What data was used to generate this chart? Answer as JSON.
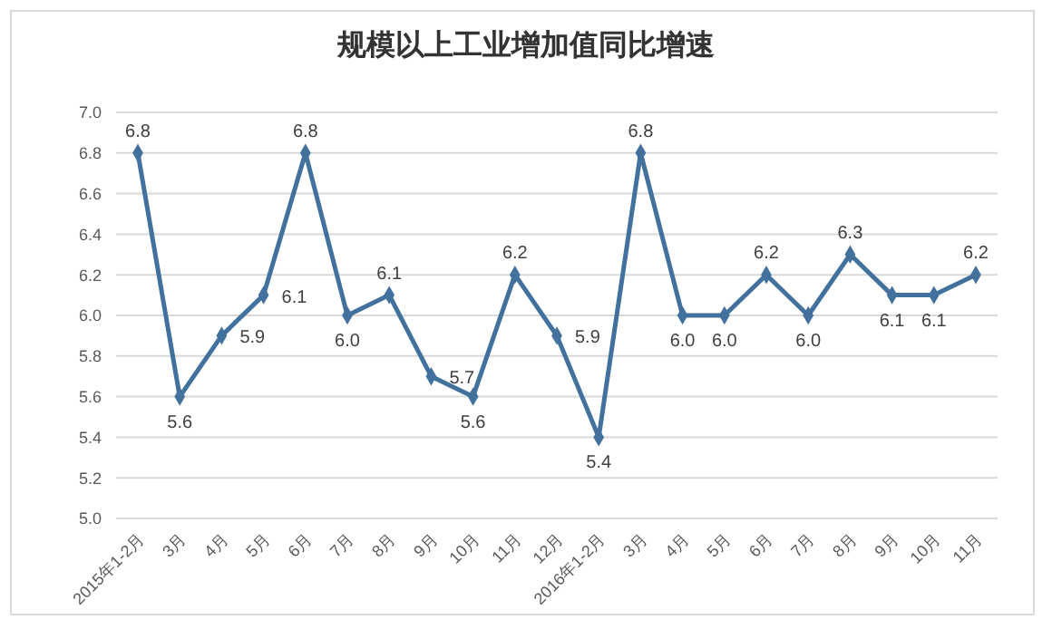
{
  "chart_data": {
    "type": "line",
    "title": "规模以上工业增加值同比增速",
    "categories": [
      "2015年1-2月",
      "3月",
      "4月",
      "5月",
      "6月",
      "7月",
      "8月",
      "9月",
      "10月",
      "11月",
      "12月",
      "2016年1-2月",
      "3月",
      "4月",
      "5月",
      "6月",
      "7月",
      "8月",
      "9月",
      "10月",
      "11月"
    ],
    "series": [
      {
        "color": "#41719c",
        "values": [
          6.8,
          5.6,
          5.9,
          6.1,
          6.8,
          6.0,
          6.1,
          5.7,
          5.6,
          6.2,
          5.9,
          5.4,
          6.8,
          6.0,
          6.0,
          6.2,
          6.0,
          6.3,
          6.1,
          6.1,
          6.2
        ],
        "value_labels": [
          "6.8",
          "5.6",
          "5.9",
          "6.1",
          "6.8",
          "6.0",
          "6.1",
          "5.7",
          "5.6",
          "6.2",
          "5.9",
          "5.4",
          "6.8",
          "6.0",
          "6.0",
          "6.2",
          "6.0",
          "6.3",
          "6.1",
          "6.1",
          "6.2"
        ]
      }
    ],
    "ylim": [
      5.0,
      7.0
    ],
    "yticks": [
      {
        "value": 5.0,
        "label": "5.0"
      },
      {
        "value": 5.2,
        "label": "5.2"
      },
      {
        "value": 5.4,
        "label": "5.4"
      },
      {
        "value": 5.6,
        "label": "5.6"
      },
      {
        "value": 5.8,
        "label": "5.8"
      },
      {
        "value": 6.0,
        "label": "6.0"
      },
      {
        "value": 6.2,
        "label": "6.2"
      },
      {
        "value": 6.4,
        "label": "6.4"
      },
      {
        "value": 6.6,
        "label": "6.6"
      },
      {
        "value": 6.8,
        "label": "6.8"
      },
      {
        "value": 7.0,
        "label": "7.0"
      }
    ],
    "grid": "y",
    "marker": "diamond",
    "line_style": "solid"
  }
}
